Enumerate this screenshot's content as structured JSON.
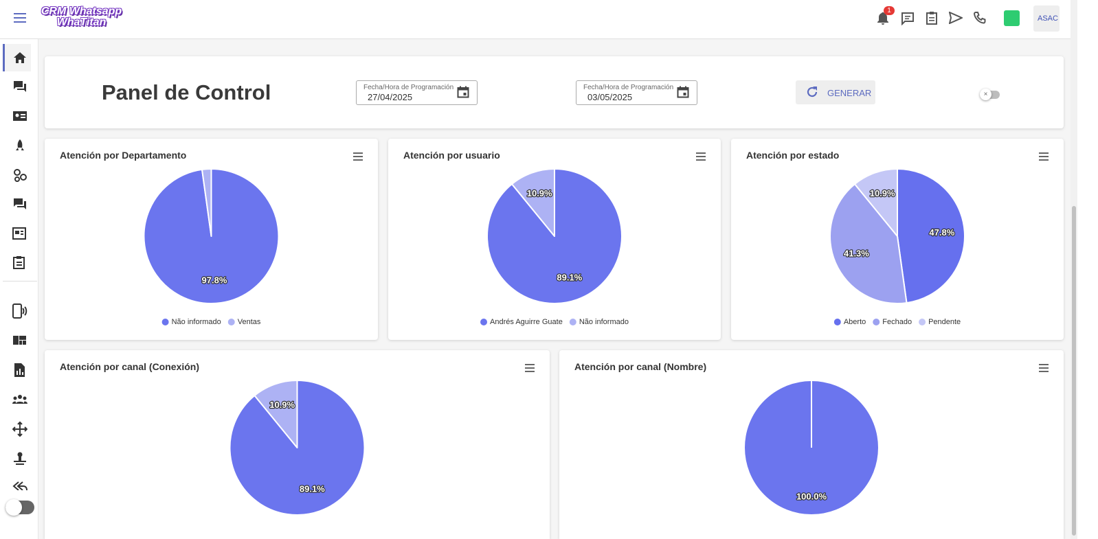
{
  "header": {
    "logo_line1": "CRM Whatsapp",
    "logo_line2": "WhaTitan",
    "notification_count": "1",
    "avatar": "ASAC"
  },
  "panel": {
    "title": "Panel de Control",
    "date_from": {
      "label": "Fecha/Hora de Programación",
      "value": "27/04/2025"
    },
    "date_to": {
      "label": "Fecha/Hora de Programación",
      "value": "03/05/2025"
    },
    "button": "GENERAR"
  },
  "chart_data": [
    {
      "type": "pie",
      "title": "Atención por Departamento",
      "categories": [
        "Não informado",
        "Ventas"
      ],
      "values": [
        97.8,
        2.2
      ],
      "value_labels": [
        "97.8%",
        null
      ],
      "colors": [
        "#6b75ee",
        "#adb2f4"
      ]
    },
    {
      "type": "pie",
      "title": "Atención por usuario",
      "categories": [
        "Andrés Aguirre Guate",
        "Não informado"
      ],
      "values": [
        89.1,
        10.9
      ],
      "value_labels": [
        "89.1%",
        "10.9%"
      ],
      "colors": [
        "#6b75ee",
        "#adb2f4"
      ]
    },
    {
      "type": "pie",
      "title": "Atención por estado",
      "categories": [
        "Aberto",
        "Fechado",
        "Pendente"
      ],
      "values": [
        47.8,
        41.3,
        10.9
      ],
      "value_labels": [
        "47.8%",
        "41.3%",
        "10.9%"
      ],
      "colors": [
        "#6670ee",
        "#9ca1f0",
        "#c4c7f6"
      ]
    },
    {
      "type": "pie",
      "title": "Atención por canal (Conexión)",
      "values": [
        89.1,
        10.9
      ],
      "value_labels": [
        "89.1%",
        "10.9%"
      ],
      "colors": [
        "#6b75ee",
        "#adb2f4"
      ]
    },
    {
      "type": "pie",
      "title": "Atención por canal (Nombre)",
      "values": [
        100.0
      ],
      "value_labels": [
        "100.0%"
      ],
      "colors": [
        "#6b75ee"
      ]
    }
  ]
}
